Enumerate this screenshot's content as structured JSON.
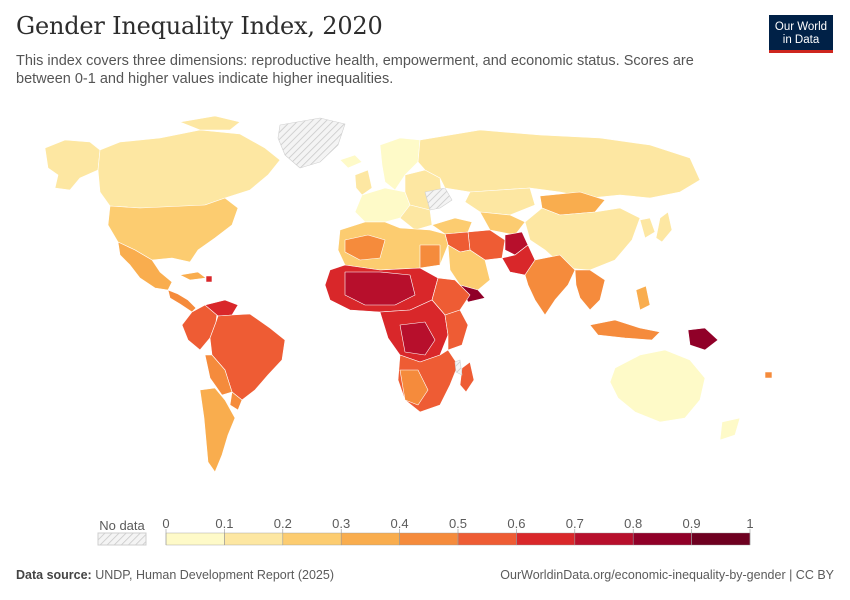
{
  "header": {
    "title": "Gender Inequality Index, 2020",
    "subtitle": "This index covers three dimensions: reproductive health, empowerment, and economic status. Scores are between 0-1 and higher values indicate higher inequalities.",
    "logo_line1": "Our World",
    "logo_line2": "in Data"
  },
  "colors": {
    "scale": [
      "#fefac8",
      "#fde7a2",
      "#fccc70",
      "#f9ad4e",
      "#f58b3c",
      "#ee5c34",
      "#d9272a",
      "#b70f2c",
      "#900028",
      "#6e0020"
    ],
    "no_data": "#e6e6e6",
    "border": "#ffffff"
  },
  "legend": {
    "no_data_label": "No data",
    "ticks": [
      "0",
      "0.1",
      "0.2",
      "0.3",
      "0.4",
      "0.5",
      "0.6",
      "0.7",
      "0.8",
      "0.9",
      "1"
    ]
  },
  "footer": {
    "source_label": "Data source:",
    "source_text": "UNDP, Human Development Report (2025)",
    "link_text": "OurWorldinData.org/economic-inequality-by-gender | CC BY"
  }
}
